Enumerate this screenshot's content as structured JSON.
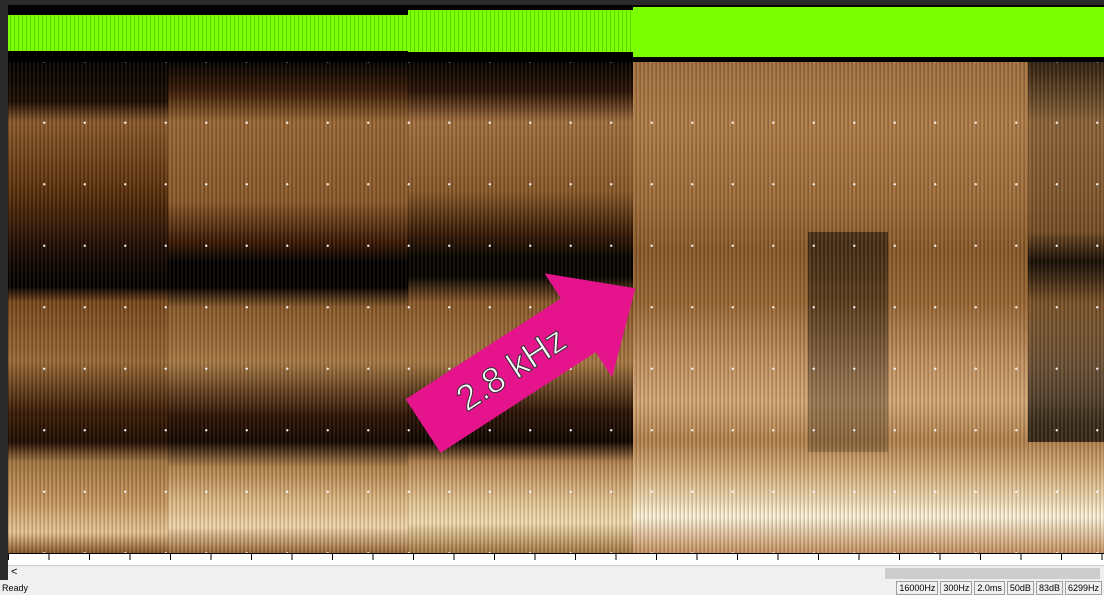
{
  "annotation": {
    "label": "2.8 kHz"
  },
  "scrollbar": {
    "left_button": "<"
  },
  "status_bar": {
    "status": "Ready",
    "fields": [
      "16000Hz",
      "300Hz",
      "2.0ms",
      "50dB",
      "83dB",
      "6299Hz"
    ]
  }
}
